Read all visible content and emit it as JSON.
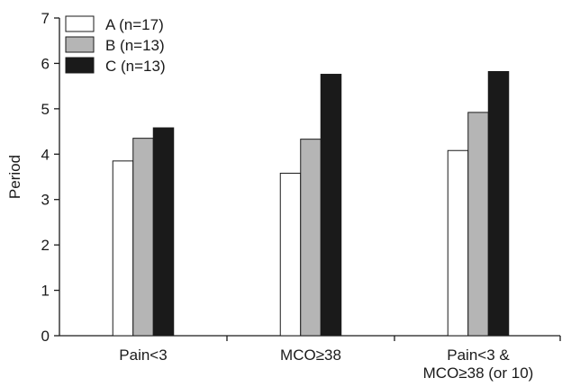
{
  "chart_data": {
    "type": "bar",
    "title": "",
    "xlabel": "",
    "ylabel": "Period",
    "ylim": [
      0,
      7
    ],
    "yticks": [
      0,
      1,
      2,
      3,
      4,
      5,
      6,
      7
    ],
    "grid": false,
    "legend_position": "top-left",
    "categories": [
      [
        "Pain<3"
      ],
      [
        "MCO≥38"
      ],
      [
        "Pain<3 &",
        "MCO≥38 (or 10)"
      ]
    ],
    "series": [
      {
        "name": "A (n=17)",
        "color": "#ffffff",
        "values": [
          3.85,
          3.58,
          4.08
        ]
      },
      {
        "name": "B (n=13)",
        "color": "#b5b5b5",
        "values": [
          4.35,
          4.33,
          4.92
        ]
      },
      {
        "name": "C (n=13)",
        "color": "#1a1a1a",
        "values": [
          4.58,
          5.76,
          5.82
        ]
      }
    ]
  }
}
